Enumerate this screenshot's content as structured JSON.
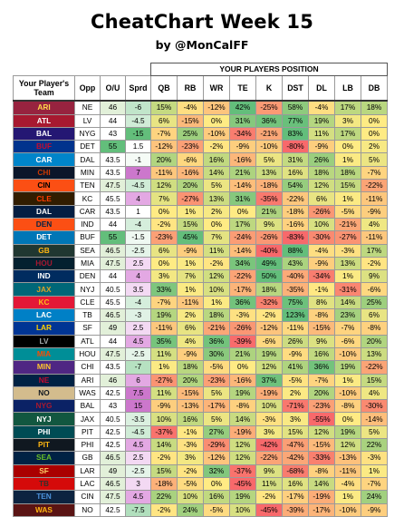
{
  "title": "CheatChart Week 15",
  "subtitle": "by @MonCalFF",
  "group_header": "YOUR PLAYERS POSITION",
  "columns": {
    "team": "Your Player's Team",
    "opp": "Opp",
    "ou": "O/U",
    "sprd": "Sprd",
    "qb": "QB",
    "rb": "RB",
    "wr": "WR",
    "te": "TE",
    "k": "K",
    "dst": "DST",
    "dl": "DL",
    "lb": "LB",
    "db": "DB"
  },
  "colors": {
    "positive": "#63be7b",
    "neutral": "#ffeb84",
    "negative": "#f8696b"
  },
  "rows": [
    {
      "team": "ARI",
      "bg": "#97233f",
      "fg": "#ffd94a",
      "opp": "NE",
      "ou": "46",
      "sprd": "-6",
      "qb": "15%",
      "rb": "-4%",
      "wr": "-12%",
      "te": "42%",
      "k": "-25%",
      "dst": "58%",
      "dl": "-4%",
      "lb": "17%",
      "db": "18%"
    },
    {
      "team": "ATL",
      "bg": "#a71930",
      "fg": "#ffffff",
      "opp": "LV",
      "ou": "44",
      "sprd": "-4.5",
      "qb": "6%",
      "rb": "-15%",
      "wr": "0%",
      "te": "31%",
      "k": "36%",
      "dst": "77%",
      "dl": "19%",
      "lb": "3%",
      "db": "0%"
    },
    {
      "team": "BAL",
      "bg": "#241773",
      "fg": "#ffffff",
      "opp": "NYG",
      "ou": "43",
      "sprd": "-15",
      "qb": "-7%",
      "rb": "25%",
      "wr": "-10%",
      "te": "-34%",
      "k": "-21%",
      "dst": "83%",
      "dl": "11%",
      "lb": "17%",
      "db": "0%"
    },
    {
      "team": "BUF",
      "bg": "#00338d",
      "fg": "#c60c30",
      "opp": "DET",
      "ou": "55",
      "sprd": "1.5",
      "qb": "-12%",
      "rb": "-23%",
      "wr": "-2%",
      "te": "-9%",
      "k": "-10%",
      "dst": "-80%",
      "dl": "-9%",
      "lb": "0%",
      "db": "2%"
    },
    {
      "team": "CAR",
      "bg": "#0085ca",
      "fg": "#ffffff",
      "opp": "DAL",
      "ou": "43.5",
      "sprd": "-1",
      "qb": "20%",
      "rb": "-6%",
      "wr": "16%",
      "te": "-16%",
      "k": "5%",
      "dst": "31%",
      "dl": "26%",
      "lb": "1%",
      "db": "5%"
    },
    {
      "team": "CHI",
      "bg": "#0b162a",
      "fg": "#c83803",
      "opp": "MIN",
      "ou": "43.5",
      "sprd": "7",
      "qb": "-11%",
      "rb": "-16%",
      "wr": "14%",
      "te": "21%",
      "k": "13%",
      "dst": "16%",
      "dl": "18%",
      "lb": "18%",
      "db": "-7%"
    },
    {
      "team": "CIN",
      "bg": "#fb4f14",
      "fg": "#000000",
      "opp": "TEN",
      "ou": "47.5",
      "sprd": "-4.5",
      "qb": "12%",
      "rb": "20%",
      "wr": "5%",
      "te": "-14%",
      "k": "-18%",
      "dst": "54%",
      "dl": "12%",
      "lb": "15%",
      "db": "-22%"
    },
    {
      "team": "CLE",
      "bg": "#311d00",
      "fg": "#ff3c00",
      "opp": "KC",
      "ou": "45.5",
      "sprd": "4",
      "qb": "7%",
      "rb": "-27%",
      "wr": "13%",
      "te": "31%",
      "k": "-35%",
      "dst": "-22%",
      "dl": "6%",
      "lb": "1%",
      "db": "-11%"
    },
    {
      "team": "DAL",
      "bg": "#041e42",
      "fg": "#ffffff",
      "opp": "CAR",
      "ou": "43.5",
      "sprd": "1",
      "qb": "0%",
      "rb": "1%",
      "wr": "2%",
      "te": "0%",
      "k": "21%",
      "dst": "-18%",
      "dl": "-26%",
      "lb": "-5%",
      "db": "-9%"
    },
    {
      "team": "DEN",
      "bg": "#fb4f14",
      "fg": "#002244",
      "opp": "IND",
      "ou": "44",
      "sprd": "-4",
      "qb": "-2%",
      "rb": "15%",
      "wr": "0%",
      "te": "17%",
      "k": "9%",
      "dst": "-16%",
      "dl": "10%",
      "lb": "-21%",
      "db": "4%"
    },
    {
      "team": "DET",
      "bg": "#0076b6",
      "fg": "#ffffff",
      "opp": "BUF",
      "ou": "55",
      "sprd": "-1.5",
      "qb": "-23%",
      "rb": "45%",
      "wr": "7%",
      "te": "-24%",
      "k": "-26%",
      "dst": "-83%",
      "dl": "-30%",
      "lb": "-27%",
      "db": "-11%"
    },
    {
      "team": "GB",
      "bg": "#203731",
      "fg": "#ffb612",
      "opp": "SEA",
      "ou": "46.5",
      "sprd": "-2.5",
      "qb": "6%",
      "rb": "-9%",
      "wr": "11%",
      "te": "-14%",
      "k": "-40%",
      "dst": "88%",
      "dl": "-4%",
      "lb": "-3%",
      "db": "17%"
    },
    {
      "team": "HOU",
      "bg": "#03202f",
      "fg": "#a71930",
      "opp": "MIA",
      "ou": "47.5",
      "sprd": "2.5",
      "qb": "0%",
      "rb": "1%",
      "wr": "-2%",
      "te": "34%",
      "k": "49%",
      "dst": "43%",
      "dl": "-9%",
      "lb": "13%",
      "db": "-2%"
    },
    {
      "team": "IND",
      "bg": "#002c5f",
      "fg": "#ffffff",
      "opp": "DEN",
      "ou": "44",
      "sprd": "4",
      "qb": "3%",
      "rb": "7%",
      "wr": "12%",
      "te": "-22%",
      "k": "50%",
      "dst": "-40%",
      "dl": "-34%",
      "lb": "1%",
      "db": "9%"
    },
    {
      "team": "JAX",
      "bg": "#006778",
      "fg": "#d7a22a",
      "opp": "NYJ",
      "ou": "40.5",
      "sprd": "3.5",
      "qb": "33%",
      "rb": "1%",
      "wr": "10%",
      "te": "-17%",
      "k": "18%",
      "dst": "-35%",
      "dl": "-1%",
      "lb": "-31%",
      "db": "-6%"
    },
    {
      "team": "KC",
      "bg": "#e31837",
      "fg": "#ffb81c",
      "opp": "CLE",
      "ou": "45.5",
      "sprd": "-4",
      "qb": "-7%",
      "rb": "-11%",
      "wr": "1%",
      "te": "36%",
      "k": "-32%",
      "dst": "75%",
      "dl": "8%",
      "lb": "14%",
      "db": "25%"
    },
    {
      "team": "LAC",
      "bg": "#0080c6",
      "fg": "#ffffff",
      "opp": "TB",
      "ou": "46.5",
      "sprd": "-3",
      "qb": "19%",
      "rb": "2%",
      "wr": "18%",
      "te": "-3%",
      "k": "-2%",
      "dst": "123%",
      "dl": "-8%",
      "lb": "23%",
      "db": "6%"
    },
    {
      "team": "LAR",
      "bg": "#003594",
      "fg": "#ffd100",
      "opp": "SF",
      "ou": "49",
      "sprd": "2.5",
      "qb": "-11%",
      "rb": "6%",
      "wr": "-21%",
      "te": "-26%",
      "k": "-12%",
      "dst": "-11%",
      "dl": "-15%",
      "lb": "-7%",
      "db": "-8%"
    },
    {
      "team": "LV",
      "bg": "#000000",
      "fg": "#a5acaf",
      "opp": "ATL",
      "ou": "44",
      "sprd": "4.5",
      "qb": "35%",
      "rb": "4%",
      "wr": "36%",
      "te": "-39%",
      "k": "-6%",
      "dst": "26%",
      "dl": "9%",
      "lb": "-6%",
      "db": "20%"
    },
    {
      "team": "MIA",
      "bg": "#008e97",
      "fg": "#fc4c02",
      "opp": "HOU",
      "ou": "47.5",
      "sprd": "-2.5",
      "qb": "11%",
      "rb": "-9%",
      "wr": "30%",
      "te": "21%",
      "k": "19%",
      "dst": "-9%",
      "dl": "16%",
      "lb": "-10%",
      "db": "13%"
    },
    {
      "team": "MIN",
      "bg": "#4f2683",
      "fg": "#ffc62f",
      "opp": "CHI",
      "ou": "43.5",
      "sprd": "-7",
      "qb": "1%",
      "rb": "18%",
      "wr": "-5%",
      "te": "0%",
      "k": "12%",
      "dst": "41%",
      "dl": "36%",
      "lb": "19%",
      "db": "-22%"
    },
    {
      "team": "NE",
      "bg": "#002244",
      "fg": "#c60c30",
      "opp": "ARI",
      "ou": "46",
      "sprd": "6",
      "qb": "-27%",
      "rb": "20%",
      "wr": "-23%",
      "te": "-16%",
      "k": "37%",
      "dst": "-5%",
      "dl": "-7%",
      "lb": "1%",
      "db": "15%"
    },
    {
      "team": "NO",
      "bg": "#d3bc8d",
      "fg": "#101820",
      "opp": "WAS",
      "ou": "42.5",
      "sprd": "7.5",
      "qb": "11%",
      "rb": "-15%",
      "wr": "5%",
      "te": "19%",
      "k": "-19%",
      "dst": "2%",
      "dl": "20%",
      "lb": "-10%",
      "db": "4%"
    },
    {
      "team": "NYG",
      "bg": "#0b2265",
      "fg": "#a71930",
      "opp": "BAL",
      "ou": "43",
      "sprd": "15",
      "qb": "-9%",
      "rb": "-13%",
      "wr": "-17%",
      "te": "-8%",
      "k": "10%",
      "dst": "-71%",
      "dl": "-23%",
      "lb": "-8%",
      "db": "-30%"
    },
    {
      "team": "NYJ",
      "bg": "#125740",
      "fg": "#ffffff",
      "opp": "JAX",
      "ou": "40.5",
      "sprd": "-3.5",
      "qb": "10%",
      "rb": "16%",
      "wr": "5%",
      "te": "14%",
      "k": "-3%",
      "dst": "3%",
      "dl": "-55%",
      "lb": "0%",
      "db": "-14%"
    },
    {
      "team": "PHI",
      "bg": "#004c54",
      "fg": "#ffffff",
      "opp": "PIT",
      "ou": "42.5",
      "sprd": "-4.5",
      "qb": "-37%",
      "rb": "-1%",
      "wr": "27%",
      "te": "-19%",
      "k": "3%",
      "dst": "15%",
      "dl": "12%",
      "lb": "19%",
      "db": "5%"
    },
    {
      "team": "PIT",
      "bg": "#101820",
      "fg": "#ffb612",
      "opp": "PHI",
      "ou": "42.5",
      "sprd": "4.5",
      "qb": "14%",
      "rb": "-3%",
      "wr": "-29%",
      "te": "12%",
      "k": "-42%",
      "dst": "-47%",
      "dl": "-15%",
      "lb": "12%",
      "db": "22%"
    },
    {
      "team": "SEA",
      "bg": "#002244",
      "fg": "#69be28",
      "opp": "GB",
      "ou": "46.5",
      "sprd": "2.5",
      "qb": "-2%",
      "rb": "3%",
      "wr": "-12%",
      "te": "12%",
      "k": "-22%",
      "dst": "-42%",
      "dl": "-33%",
      "lb": "-13%",
      "db": "-3%"
    },
    {
      "team": "SF",
      "bg": "#aa0000",
      "fg": "#ffcc66",
      "opp": "LAR",
      "ou": "49",
      "sprd": "-2.5",
      "qb": "15%",
      "rb": "-2%",
      "wr": "32%",
      "te": "-37%",
      "k": "9%",
      "dst": "-68%",
      "dl": "-8%",
      "lb": "-11%",
      "db": "1%"
    },
    {
      "team": "TB",
      "bg": "#d50a0a",
      "fg": "#34302b",
      "opp": "LAC",
      "ou": "46.5",
      "sprd": "3",
      "qb": "-18%",
      "rb": "-5%",
      "wr": "0%",
      "te": "-45%",
      "k": "11%",
      "dst": "16%",
      "dl": "14%",
      "lb": "-4%",
      "db": "-7%"
    },
    {
      "team": "TEN",
      "bg": "#0c2340",
      "fg": "#4b92db",
      "opp": "CIN",
      "ou": "47.5",
      "sprd": "4.5",
      "qb": "22%",
      "rb": "10%",
      "wr": "16%",
      "te": "19%",
      "k": "-2%",
      "dst": "-17%",
      "dl": "-19%",
      "lb": "1%",
      "db": "24%"
    },
    {
      "team": "WAS",
      "bg": "#5a1414",
      "fg": "#ffb612",
      "opp": "NO",
      "ou": "42.5",
      "sprd": "-7.5",
      "qb": "-2%",
      "rb": "24%",
      "wr": "-5%",
      "te": "10%",
      "k": "-45%",
      "dst": "-39%",
      "dl": "-17%",
      "lb": "-10%",
      "db": "-9%"
    }
  ]
}
